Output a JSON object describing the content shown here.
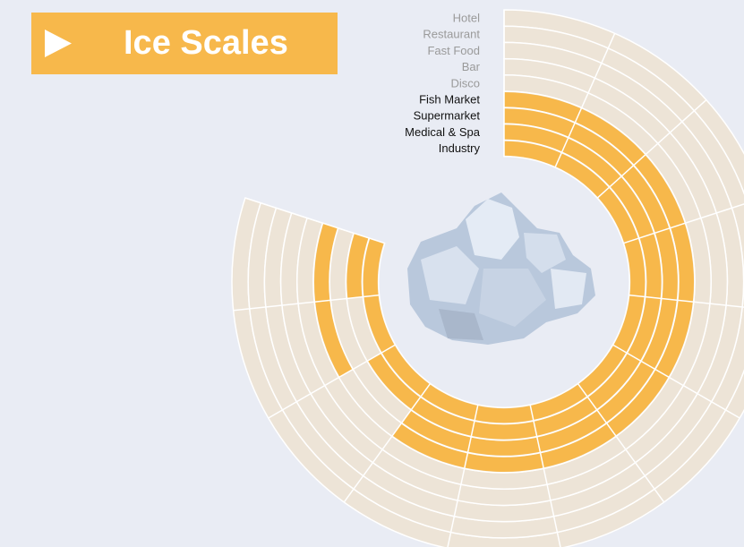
{
  "header": {
    "title": "Ice Scales"
  },
  "rings": [
    {
      "label": "Hotel",
      "active": false
    },
    {
      "label": "Restaurant",
      "active": false
    },
    {
      "label": "Fast Food",
      "active": false
    },
    {
      "label": "Bar",
      "active": false
    },
    {
      "label": "Disco",
      "active": false
    },
    {
      "label": "Fish Market",
      "active": true
    },
    {
      "label": "Supermarket",
      "active": true
    },
    {
      "label": "Medical & Spa",
      "active": true
    },
    {
      "label": "Industry",
      "active": true
    }
  ]
}
